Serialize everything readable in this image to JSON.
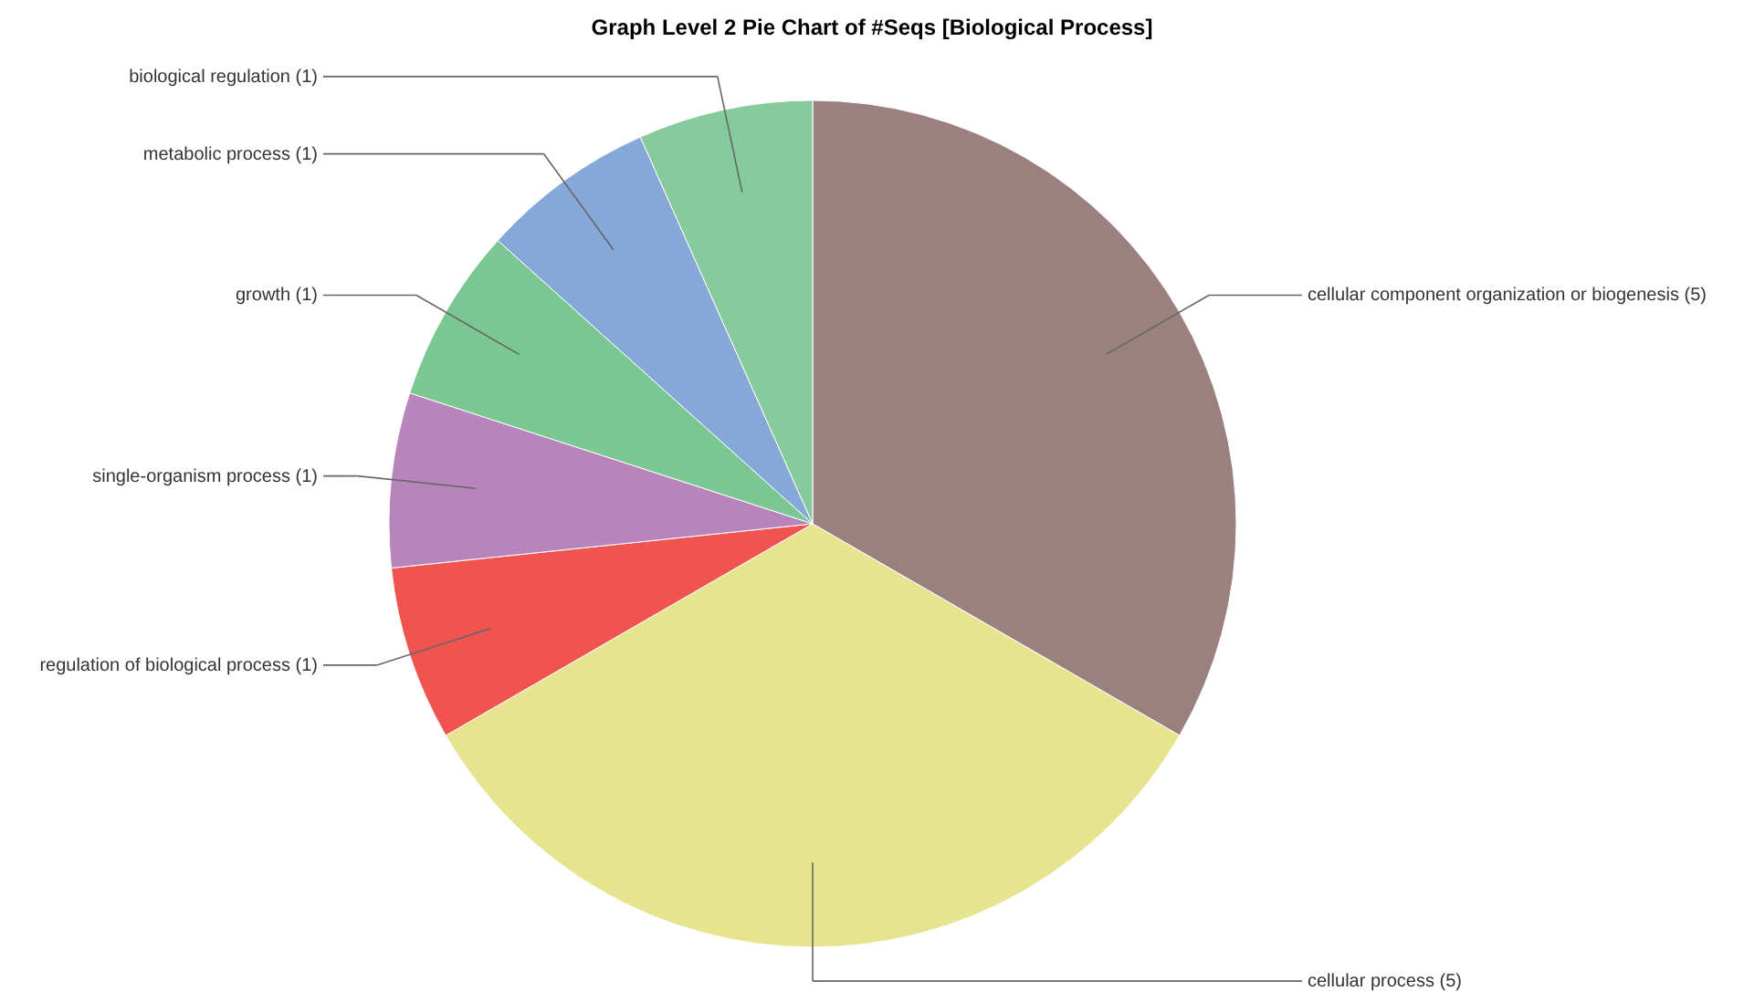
{
  "chart_data": {
    "type": "pie",
    "title": "Graph Level 2 Pie Chart of #Seqs [Biological Process]",
    "categories": [
      "cellular component organization or biogenesis (5)",
      "cellular process (5)",
      "regulation of biological process (1)",
      "single-organism process (1)",
      "growth (1)",
      "metabolic process (1)",
      "biological regulation (1)"
    ],
    "values": [
      5,
      5,
      1,
      1,
      1,
      1,
      1
    ],
    "colors": [
      "#9b8080",
      "#e6e48f",
      "#f0544f",
      "#b784bc",
      "#7ac792",
      "#86a8d8",
      "#87cb9c"
    ]
  }
}
